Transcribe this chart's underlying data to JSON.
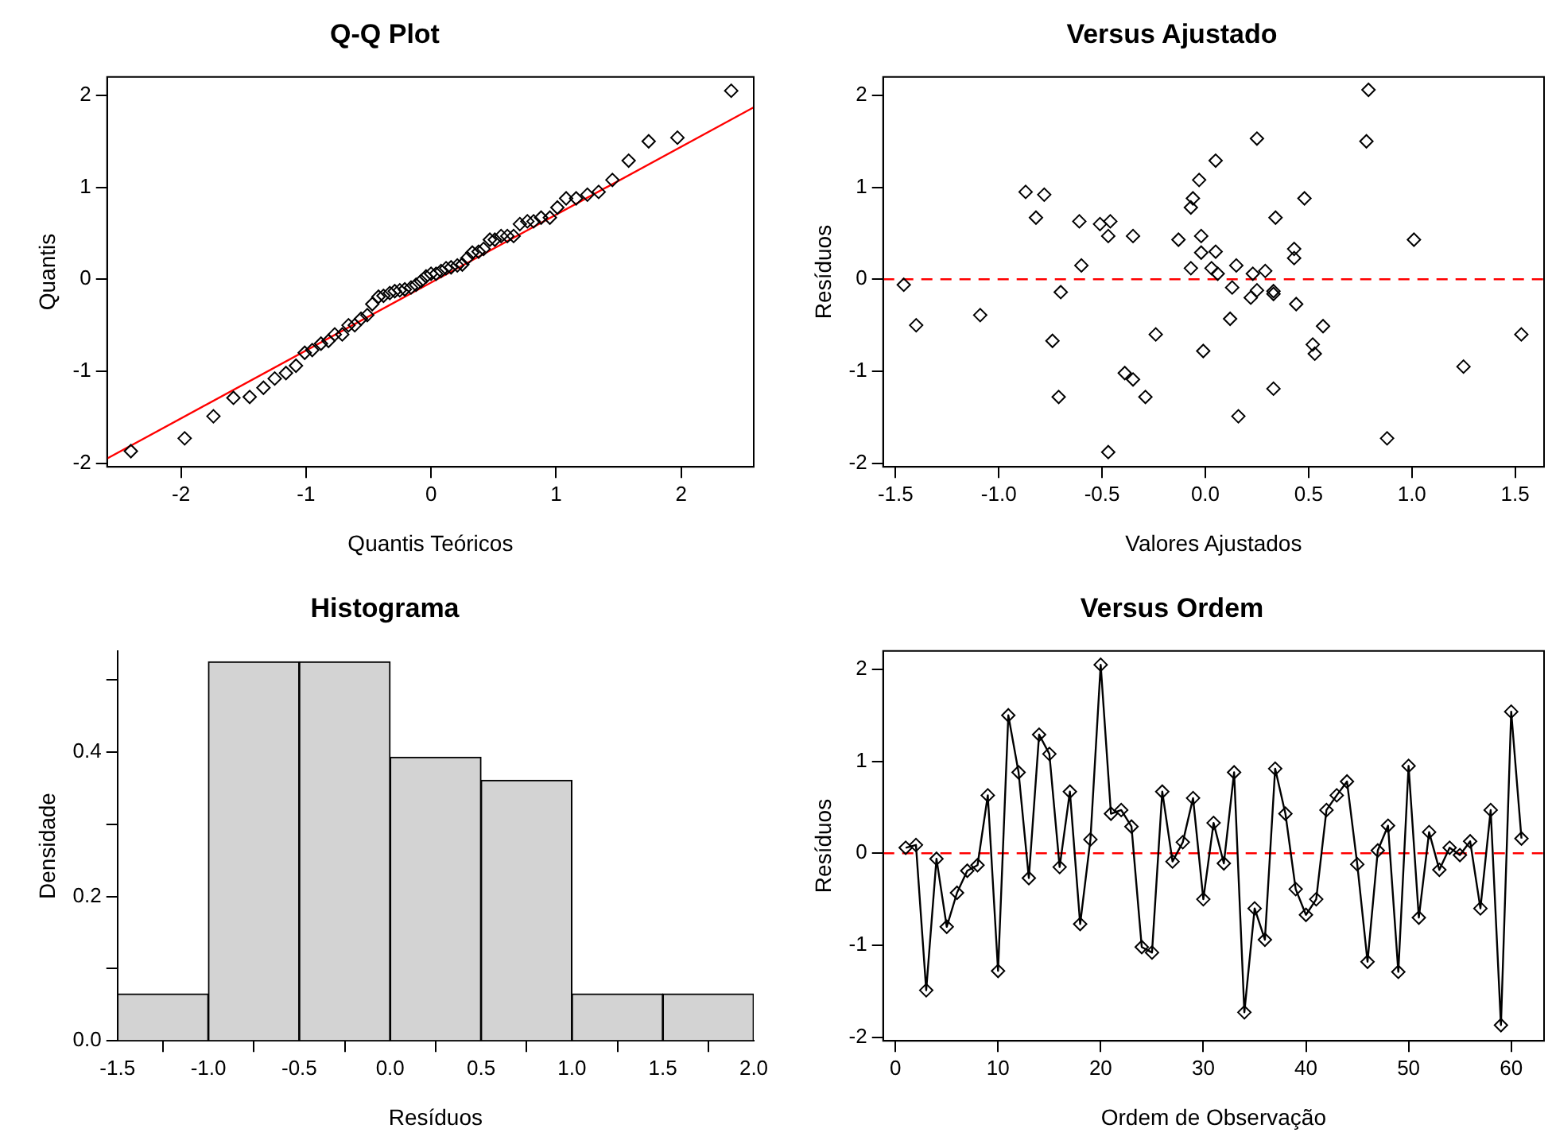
{
  "chart_data": [
    {
      "type": "scatter",
      "title": "Q-Q Plot",
      "xlabel": "Quantis Teóricos",
      "ylabel": "Quantis",
      "marker": "diamond",
      "legend": false,
      "grid": false,
      "xlim": [
        -2.59,
        2.58
      ],
      "ylim": [
        -2.04,
        2.2
      ],
      "xticks": [
        -2,
        -1,
        0,
        1,
        2
      ],
      "yticks": [
        -2,
        -1,
        0,
        1,
        2
      ],
      "series": [
        {
          "color": "#000000",
          "x": [
            -2.4,
            -1.97,
            -1.74,
            -1.58,
            -1.45,
            -1.34,
            -1.25,
            -1.16,
            -1.08,
            -1.01,
            -0.95,
            -0.88,
            -0.82,
            -0.77,
            -0.71,
            -0.66,
            -0.61,
            -0.56,
            -0.51,
            -0.47,
            -0.42,
            -0.38,
            -0.33,
            -0.29,
            -0.25,
            -0.21,
            -0.16,
            -0.12,
            -0.08,
            -0.04,
            0,
            0.04,
            0.08,
            0.12,
            0.16,
            0.21,
            0.25,
            0.29,
            0.33,
            0.38,
            0.42,
            0.47,
            0.51,
            0.56,
            0.61,
            0.66,
            0.71,
            0.77,
            0.82,
            0.88,
            0.95,
            1.01,
            1.08,
            1.16,
            1.25,
            1.34,
            1.45,
            1.58,
            1.74,
            1.97,
            2.4
          ],
          "values": [
            -1.87,
            -1.73,
            -1.49,
            -1.29,
            -1.28,
            -1.18,
            -1.08,
            -1.02,
            -0.94,
            -0.8,
            -0.77,
            -0.7,
            -0.67,
            -0.6,
            -0.6,
            -0.5,
            -0.5,
            -0.43,
            -0.39,
            -0.27,
            -0.19,
            -0.18,
            -0.15,
            -0.13,
            -0.12,
            -0.11,
            -0.09,
            -0.06,
            -0.02,
            0.03,
            0.06,
            0.06,
            0.09,
            0.12,
            0.13,
            0.15,
            0.16,
            0.23,
            0.29,
            0.3,
            0.33,
            0.43,
            0.43,
            0.47,
            0.47,
            0.47,
            0.6,
            0.63,
            0.63,
            0.67,
            0.67,
            0.78,
            0.88,
            0.88,
            0.92,
            0.95,
            1.08,
            1.29,
            1.5,
            1.54,
            2.05
          ]
        },
        {
          "type": "line",
          "color": "#ff0000",
          "marker": "none",
          "x": [
            -2.59,
            2.58
          ],
          "values": [
            -1.95,
            1.87
          ]
        }
      ]
    },
    {
      "type": "scatter",
      "title": "Versus Ajustado",
      "xlabel": "Valores Ajustados",
      "ylabel": "Resíduos",
      "marker": "diamond",
      "legend": false,
      "grid": false,
      "xlim": [
        -1.56,
        1.64
      ],
      "ylim": [
        -2.04,
        2.2
      ],
      "xticks": [
        -1.5,
        {
          "value": -1,
          "label": "-1.0"
        },
        -0.5,
        {
          "value": 0,
          "label": "0.0"
        },
        0.5,
        {
          "value": 1,
          "label": "1.0"
        },
        1.5
      ],
      "yticks": [
        -2,
        -1,
        0,
        1,
        2
      ],
      "ref_lines": [
        {
          "axis": "y",
          "value": 0,
          "color": "#ff0000",
          "line_style": "dashed"
        }
      ],
      "series": [
        {
          "color": "#000000",
          "x": [
            -1.46,
            -1.4,
            -1.09,
            -0.87,
            -0.78,
            -0.82,
            -0.74,
            -0.7,
            -0.71,
            -0.61,
            -0.6,
            -0.51,
            -0.46,
            -0.47,
            -0.39,
            -0.35,
            -0.35,
            -0.47,
            -0.29,
            -0.24,
            -0.13,
            -0.07,
            -0.06,
            -0.03,
            -0.07,
            -0.02,
            -0.02,
            -0.01,
            0.05,
            0.05,
            0.03,
            0.06,
            0.12,
            0.15,
            0.13,
            0.16,
            0.22,
            0.23,
            0.25,
            0.29,
            0.25,
            0.33,
            0.33,
            0.34,
            0.33,
            0.43,
            0.43,
            0.44,
            0.48,
            0.52,
            0.53,
            0.57,
            0.79,
            0.78,
            0.88,
            1.01,
            1.25,
            1.53
          ],
          "values": [
            -0.06,
            -0.5,
            -0.39,
            0.95,
            0.92,
            0.67,
            -0.67,
            -0.14,
            -1.28,
            0.63,
            0.15,
            0.6,
            0.63,
            0.47,
            -1.02,
            -1.09,
            0.47,
            -1.88,
            -1.28,
            -0.6,
            0.43,
            0.78,
            0.88,
            1.08,
            0.12,
            0.47,
            0.29,
            -0.78,
            1.29,
            0.3,
            0.12,
            0.06,
            -0.43,
            0.15,
            -0.09,
            -1.49,
            -0.2,
            0.06,
            1.53,
            0.09,
            -0.12,
            -0.16,
            -0.13,
            0.67,
            -1.19,
            0.33,
            0.23,
            -0.27,
            0.88,
            -0.71,
            -0.81,
            -0.51,
            2.06,
            1.5,
            -1.73,
            0.43,
            -0.95,
            -0.6
          ]
        }
      ]
    },
    {
      "type": "histogram",
      "title": "Histograma",
      "xlabel": "Resíduos",
      "ylabel": "Densidade",
      "legend": false,
      "grid": false,
      "color": "#d3d3d3",
      "bins": [
        -1.5,
        -1,
        -0.5,
        0,
        0.5,
        1,
        1.5,
        2
      ],
      "values": [
        0.065,
        0.525,
        0.525,
        0.393,
        0.361,
        0.065,
        0.065
      ],
      "xlim": [
        -1.5,
        2
      ],
      "ylim": [
        0,
        0.54
      ],
      "xticks": [
        -1.5,
        {
          "value": -1,
          "label": "-1.0"
        },
        -0.5,
        {
          "value": 0,
          "label": "0.0"
        },
        0.5,
        {
          "value": 1,
          "label": "1.0"
        },
        1.5,
        {
          "value": 2,
          "label": "2.0"
        }
      ],
      "yticks": [
        {
          "value": 0,
          "label": "0.0"
        },
        {
          "value": 0.1,
          "label": null
        },
        0.2,
        {
          "value": 0.3,
          "label": null
        },
        0.4,
        {
          "value": 0.5,
          "label": null
        }
      ]
    },
    {
      "type": "line",
      "title": "Versus Ordem",
      "xlabel": "Ordem de Observação",
      "ylabel": "Resíduos",
      "marker": "diamond",
      "legend": false,
      "grid": false,
      "xlim": [
        -1.2,
        63.2
      ],
      "ylim": [
        -2.04,
        2.2
      ],
      "xticks": [
        0,
        10,
        20,
        30,
        40,
        50,
        60
      ],
      "yticks": [
        -2,
        -1,
        0,
        1,
        2
      ],
      "ref_lines": [
        {
          "axis": "y",
          "value": 0,
          "color": "#ff0000",
          "line_style": "dashed"
        }
      ],
      "x": [
        1,
        2,
        3,
        4,
        5,
        6,
        7,
        8,
        9,
        10,
        11,
        12,
        13,
        14,
        15,
        16,
        17,
        18,
        19,
        20,
        21,
        22,
        23,
        24,
        25,
        26,
        27,
        28,
        29,
        30,
        31,
        32,
        33,
        34,
        35,
        36,
        37,
        38,
        39,
        40,
        41,
        42,
        43,
        44,
        45,
        46,
        47,
        48,
        49,
        50,
        51,
        52,
        53,
        54,
        55,
        56,
        57,
        58,
        59,
        60,
        61
      ],
      "series": [
        {
          "color": "#000000",
          "values": [
            0.06,
            0.09,
            -1.49,
            -0.06,
            -0.8,
            -0.43,
            -0.19,
            -0.13,
            0.63,
            -1.28,
            1.5,
            0.88,
            -0.27,
            1.29,
            1.08,
            -0.15,
            0.67,
            -0.77,
            0.15,
            2.05,
            0.43,
            0.47,
            0.29,
            -1.02,
            -1.08,
            0.67,
            -0.09,
            0.12,
            0.6,
            -0.5,
            0.33,
            -0.11,
            0.88,
            -1.73,
            -0.6,
            -0.94,
            0.92,
            0.43,
            -0.39,
            -0.67,
            -0.5,
            0.47,
            0.63,
            0.78,
            -0.12,
            -1.18,
            0.03,
            0.3,
            -1.29,
            0.95,
            -0.7,
            0.23,
            -0.18,
            0.06,
            -0.02,
            0.13,
            -0.6,
            0.47,
            -1.87,
            1.54,
            0.16
          ]
        }
      ]
    }
  ]
}
